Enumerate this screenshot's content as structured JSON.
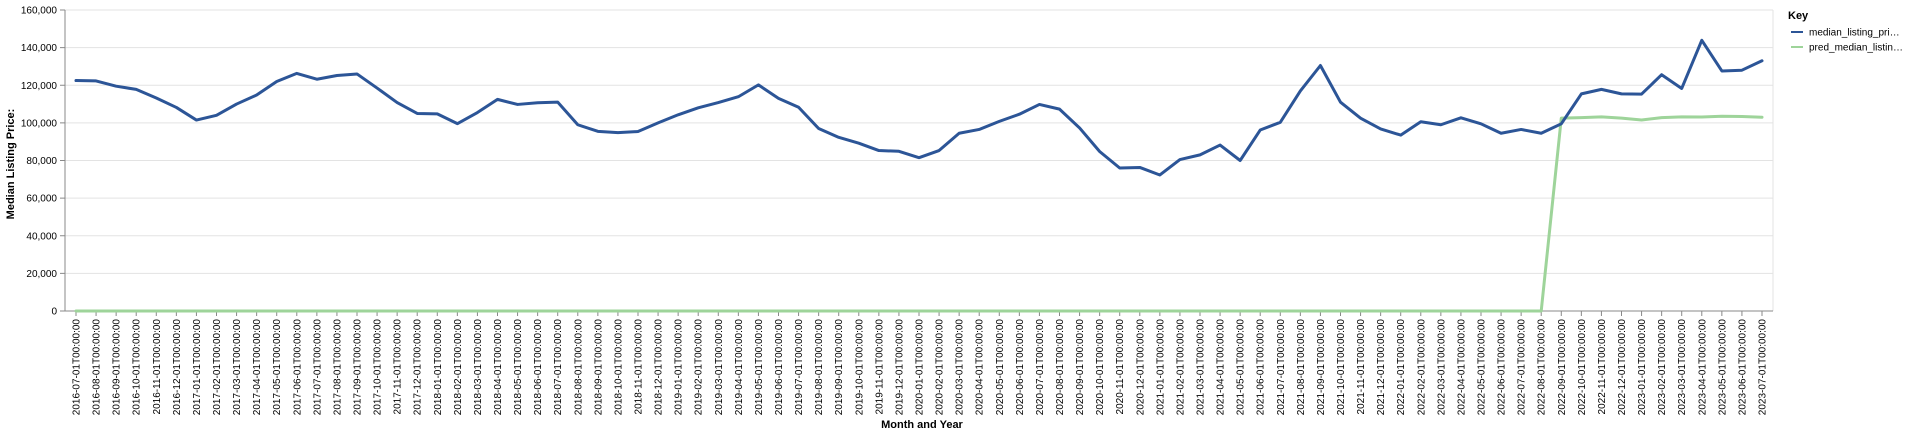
{
  "chart_data": {
    "type": "line",
    "title": "",
    "xlabel": "Month and Year",
    "ylabel": "Median Listing Price:",
    "ylim": [
      0,
      160000
    ],
    "yticks": [
      0,
      20000,
      40000,
      60000,
      80000,
      100000,
      120000,
      140000,
      160000
    ],
    "ytick_labels": [
      "0",
      "20,000",
      "40,000",
      "60,000",
      "80,000",
      "100,000",
      "120,000",
      "140,000",
      "160,000"
    ],
    "grid": true,
    "legend": {
      "title": "Key",
      "placement": "right",
      "entries": [
        {
          "label": "median_listing_pri…",
          "color": "#2c5597"
        },
        {
          "label": "pred_median_listin…",
          "color": "#9ed49a"
        }
      ]
    },
    "x": [
      "2016-07-01T00:00:00",
      "2016-08-01T00:00:00",
      "2016-09-01T00:00:00",
      "2016-10-01T00:00:00",
      "2016-11-01T00:00:00",
      "2016-12-01T00:00:00",
      "2017-01-01T00:00:00",
      "2017-02-01T00:00:00",
      "2017-03-01T00:00:00",
      "2017-04-01T00:00:00",
      "2017-05-01T00:00:00",
      "2017-06-01T00:00:00",
      "2017-07-01T00:00:00",
      "2017-08-01T00:00:00",
      "2017-09-01T00:00:00",
      "2017-10-01T00:00:00",
      "2017-11-01T00:00:00",
      "2017-12-01T00:00:00",
      "2018-01-01T00:00:00",
      "2018-02-01T00:00:00",
      "2018-03-01T00:00:00",
      "2018-04-01T00:00:00",
      "2018-05-01T00:00:00",
      "2018-06-01T00:00:00",
      "2018-07-01T00:00:00",
      "2018-08-01T00:00:00",
      "2018-09-01T00:00:00",
      "2018-10-01T00:00:00",
      "2018-11-01T00:00:00",
      "2018-12-01T00:00:00",
      "2019-01-01T00:00:00",
      "2019-02-01T00:00:00",
      "2019-03-01T00:00:00",
      "2019-04-01T00:00:00",
      "2019-05-01T00:00:00",
      "2019-06-01T00:00:00",
      "2019-07-01T00:00:00",
      "2019-08-01T00:00:00",
      "2019-09-01T00:00:00",
      "2019-10-01T00:00:00",
      "2019-11-01T00:00:00",
      "2019-12-01T00:00:00",
      "2020-01-01T00:00:00",
      "2020-02-01T00:00:00",
      "2020-03-01T00:00:00",
      "2020-04-01T00:00:00",
      "2020-05-01T00:00:00",
      "2020-06-01T00:00:00",
      "2020-07-01T00:00:00",
      "2020-08-01T00:00:00",
      "2020-09-01T00:00:00",
      "2020-10-01T00:00:00",
      "2020-11-01T00:00:00",
      "2020-12-01T00:00:00",
      "2021-01-01T00:00:00",
      "2021-02-01T00:00:00",
      "2021-03-01T00:00:00",
      "2021-04-01T00:00:00",
      "2021-05-01T00:00:00",
      "2021-06-01T00:00:00",
      "2021-07-01T00:00:00",
      "2021-08-01T00:00:00",
      "2021-09-01T00:00:00",
      "2021-10-01T00:00:00",
      "2021-11-01T00:00:00",
      "2021-12-01T00:00:00",
      "2022-01-01T00:00:00",
      "2022-02-01T00:00:00",
      "2022-03-01T00:00:00",
      "2022-04-01T00:00:00",
      "2022-05-01T00:00:00",
      "2022-06-01T00:00:00",
      "2022-07-01T00:00:00",
      "2022-08-01T00:00:00",
      "2022-09-01T00:00:00",
      "2022-10-01T00:00:00",
      "2022-11-01T00:00:00",
      "2022-12-01T00:00:00",
      "2023-01-01T00:00:00",
      "2023-02-01T00:00:00",
      "2023-03-01T00:00:00",
      "2023-04-01T00:00:00",
      "2023-05-01T00:00:00",
      "2023-06-01T00:00:00",
      "2023-07-01T00:00:00"
    ],
    "series": [
      {
        "name": "median_listing_pri…",
        "color": "#2c5597",
        "values": [
          122500,
          122300,
          119500,
          117800,
          113200,
          108200,
          101500,
          104000,
          110000,
          114800,
          122000,
          126300,
          123200,
          125200,
          126000,
          118500,
          110800,
          105000,
          104800,
          99600,
          105500,
          112500,
          109800,
          110700,
          111000,
          99000,
          95500,
          94800,
          95400,
          100000,
          104300,
          108000,
          110800,
          113900,
          120200,
          113000,
          108300,
          97000,
          92300,
          89200,
          85300,
          84900,
          81500,
          85300,
          94500,
          96500,
          100800,
          104600,
          109800,
          107300,
          97300,
          84800,
          76000,
          76300,
          72300,
          80500,
          83000,
          88200,
          80000,
          96200,
          100300,
          117000,
          130500,
          111000,
          102500,
          96800,
          93500,
          100600,
          99000,
          102700,
          99500,
          94500,
          96500,
          94500,
          99500,
          115400,
          117800,
          115400,
          115300,
          125600,
          118300,
          143900,
          127600,
          128000,
          133000
        ]
      },
      {
        "name": "pred_median_listin…",
        "color": "#9ed49a",
        "values": [
          0,
          0,
          0,
          0,
          0,
          0,
          0,
          0,
          0,
          0,
          0,
          0,
          0,
          0,
          0,
          0,
          0,
          0,
          0,
          0,
          0,
          0,
          0,
          0,
          0,
          0,
          0,
          0,
          0,
          0,
          0,
          0,
          0,
          0,
          0,
          0,
          0,
          0,
          0,
          0,
          0,
          0,
          0,
          0,
          0,
          0,
          0,
          0,
          0,
          0,
          0,
          0,
          0,
          0,
          0,
          0,
          0,
          0,
          0,
          0,
          0,
          0,
          0,
          0,
          0,
          0,
          0,
          0,
          0,
          0,
          0,
          0,
          0,
          0,
          102500,
          102800,
          103200,
          102500,
          101500,
          102800,
          103200,
          103100,
          103500,
          103400,
          103000
        ]
      }
    ]
  }
}
